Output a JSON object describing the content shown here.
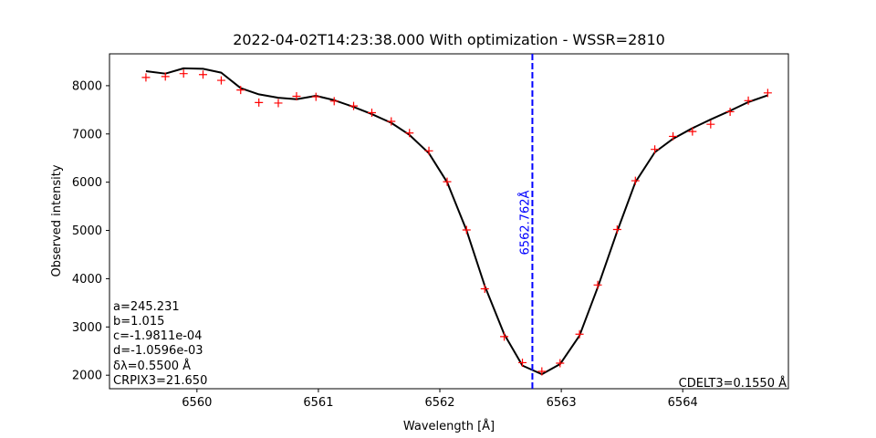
{
  "chart_data": {
    "type": "line",
    "title": "2022-04-02T14:23:38.000 With optimization - WSSR=2810",
    "xlabel": "Wavelength [Å]",
    "ylabel": "Observed intensity",
    "xlim": [
      6559.28,
      6564.87
    ],
    "ylim": [
      1720,
      8660
    ],
    "xticks": [
      6560,
      6561,
      6562,
      6563,
      6564
    ],
    "yticks": [
      2000,
      3000,
      4000,
      5000,
      6000,
      7000,
      8000
    ],
    "grid": false,
    "series": [
      {
        "kind": "fit-line",
        "color": "#000000",
        "x": [
          6559.58,
          6559.74,
          6559.89,
          6560.05,
          6560.2,
          6560.36,
          6560.51,
          6560.67,
          6560.82,
          6560.98,
          6561.13,
          6561.29,
          6561.44,
          6561.6,
          6561.75,
          6561.91,
          6562.06,
          6562.22,
          6562.37,
          6562.53,
          6562.68,
          6562.84,
          6562.99,
          6563.15,
          6563.3,
          6563.46,
          6563.61,
          6563.77,
          6563.92,
          6564.08,
          6564.23,
          6564.39,
          6564.54,
          6564.7
        ],
        "y": [
          8300,
          8250,
          8360,
          8350,
          8270,
          7950,
          7820,
          7750,
          7720,
          7790,
          7700,
          7560,
          7410,
          7230,
          6980,
          6600,
          6000,
          5000,
          3850,
          2850,
          2200,
          2020,
          2230,
          2820,
          3820,
          4980,
          6000,
          6620,
          6900,
          7120,
          7300,
          7480,
          7660,
          7800
        ]
      },
      {
        "kind": "observed-points",
        "marker": "+",
        "color": "#ff0000",
        "x": [
          6559.58,
          6559.74,
          6559.89,
          6560.05,
          6560.2,
          6560.36,
          6560.51,
          6560.67,
          6560.82,
          6560.98,
          6561.13,
          6561.29,
          6561.44,
          6561.6,
          6561.75,
          6561.91,
          6562.06,
          6562.22,
          6562.37,
          6562.53,
          6562.68,
          6562.84,
          6562.99,
          6563.15,
          6563.3,
          6563.46,
          6563.61,
          6563.77,
          6563.92,
          6564.08,
          6564.23,
          6564.39,
          6564.54,
          6564.7
        ],
        "y": [
          8170,
          8190,
          8250,
          8230,
          8110,
          7910,
          7650,
          7640,
          7780,
          7770,
          7680,
          7580,
          7440,
          7260,
          7020,
          6650,
          6010,
          5010,
          3790,
          2800,
          2260,
          2080,
          2250,
          2850,
          3870,
          5020,
          6030,
          6680,
          6950,
          7050,
          7200,
          7460,
          7690,
          7850
        ]
      }
    ],
    "vline": {
      "x": 6562.762,
      "label": "6562.762Å",
      "color": "#0000ff",
      "style": "dashed"
    },
    "annotations": {
      "params": [
        "a=245.231",
        "b=1.015",
        "c=-1.9811e-04",
        "d=-1.0596e-03",
        "δλ=0.5500 Å",
        "CRPIX3=21.650"
      ],
      "cdelt": "CDELT3=0.1550 Å"
    }
  }
}
